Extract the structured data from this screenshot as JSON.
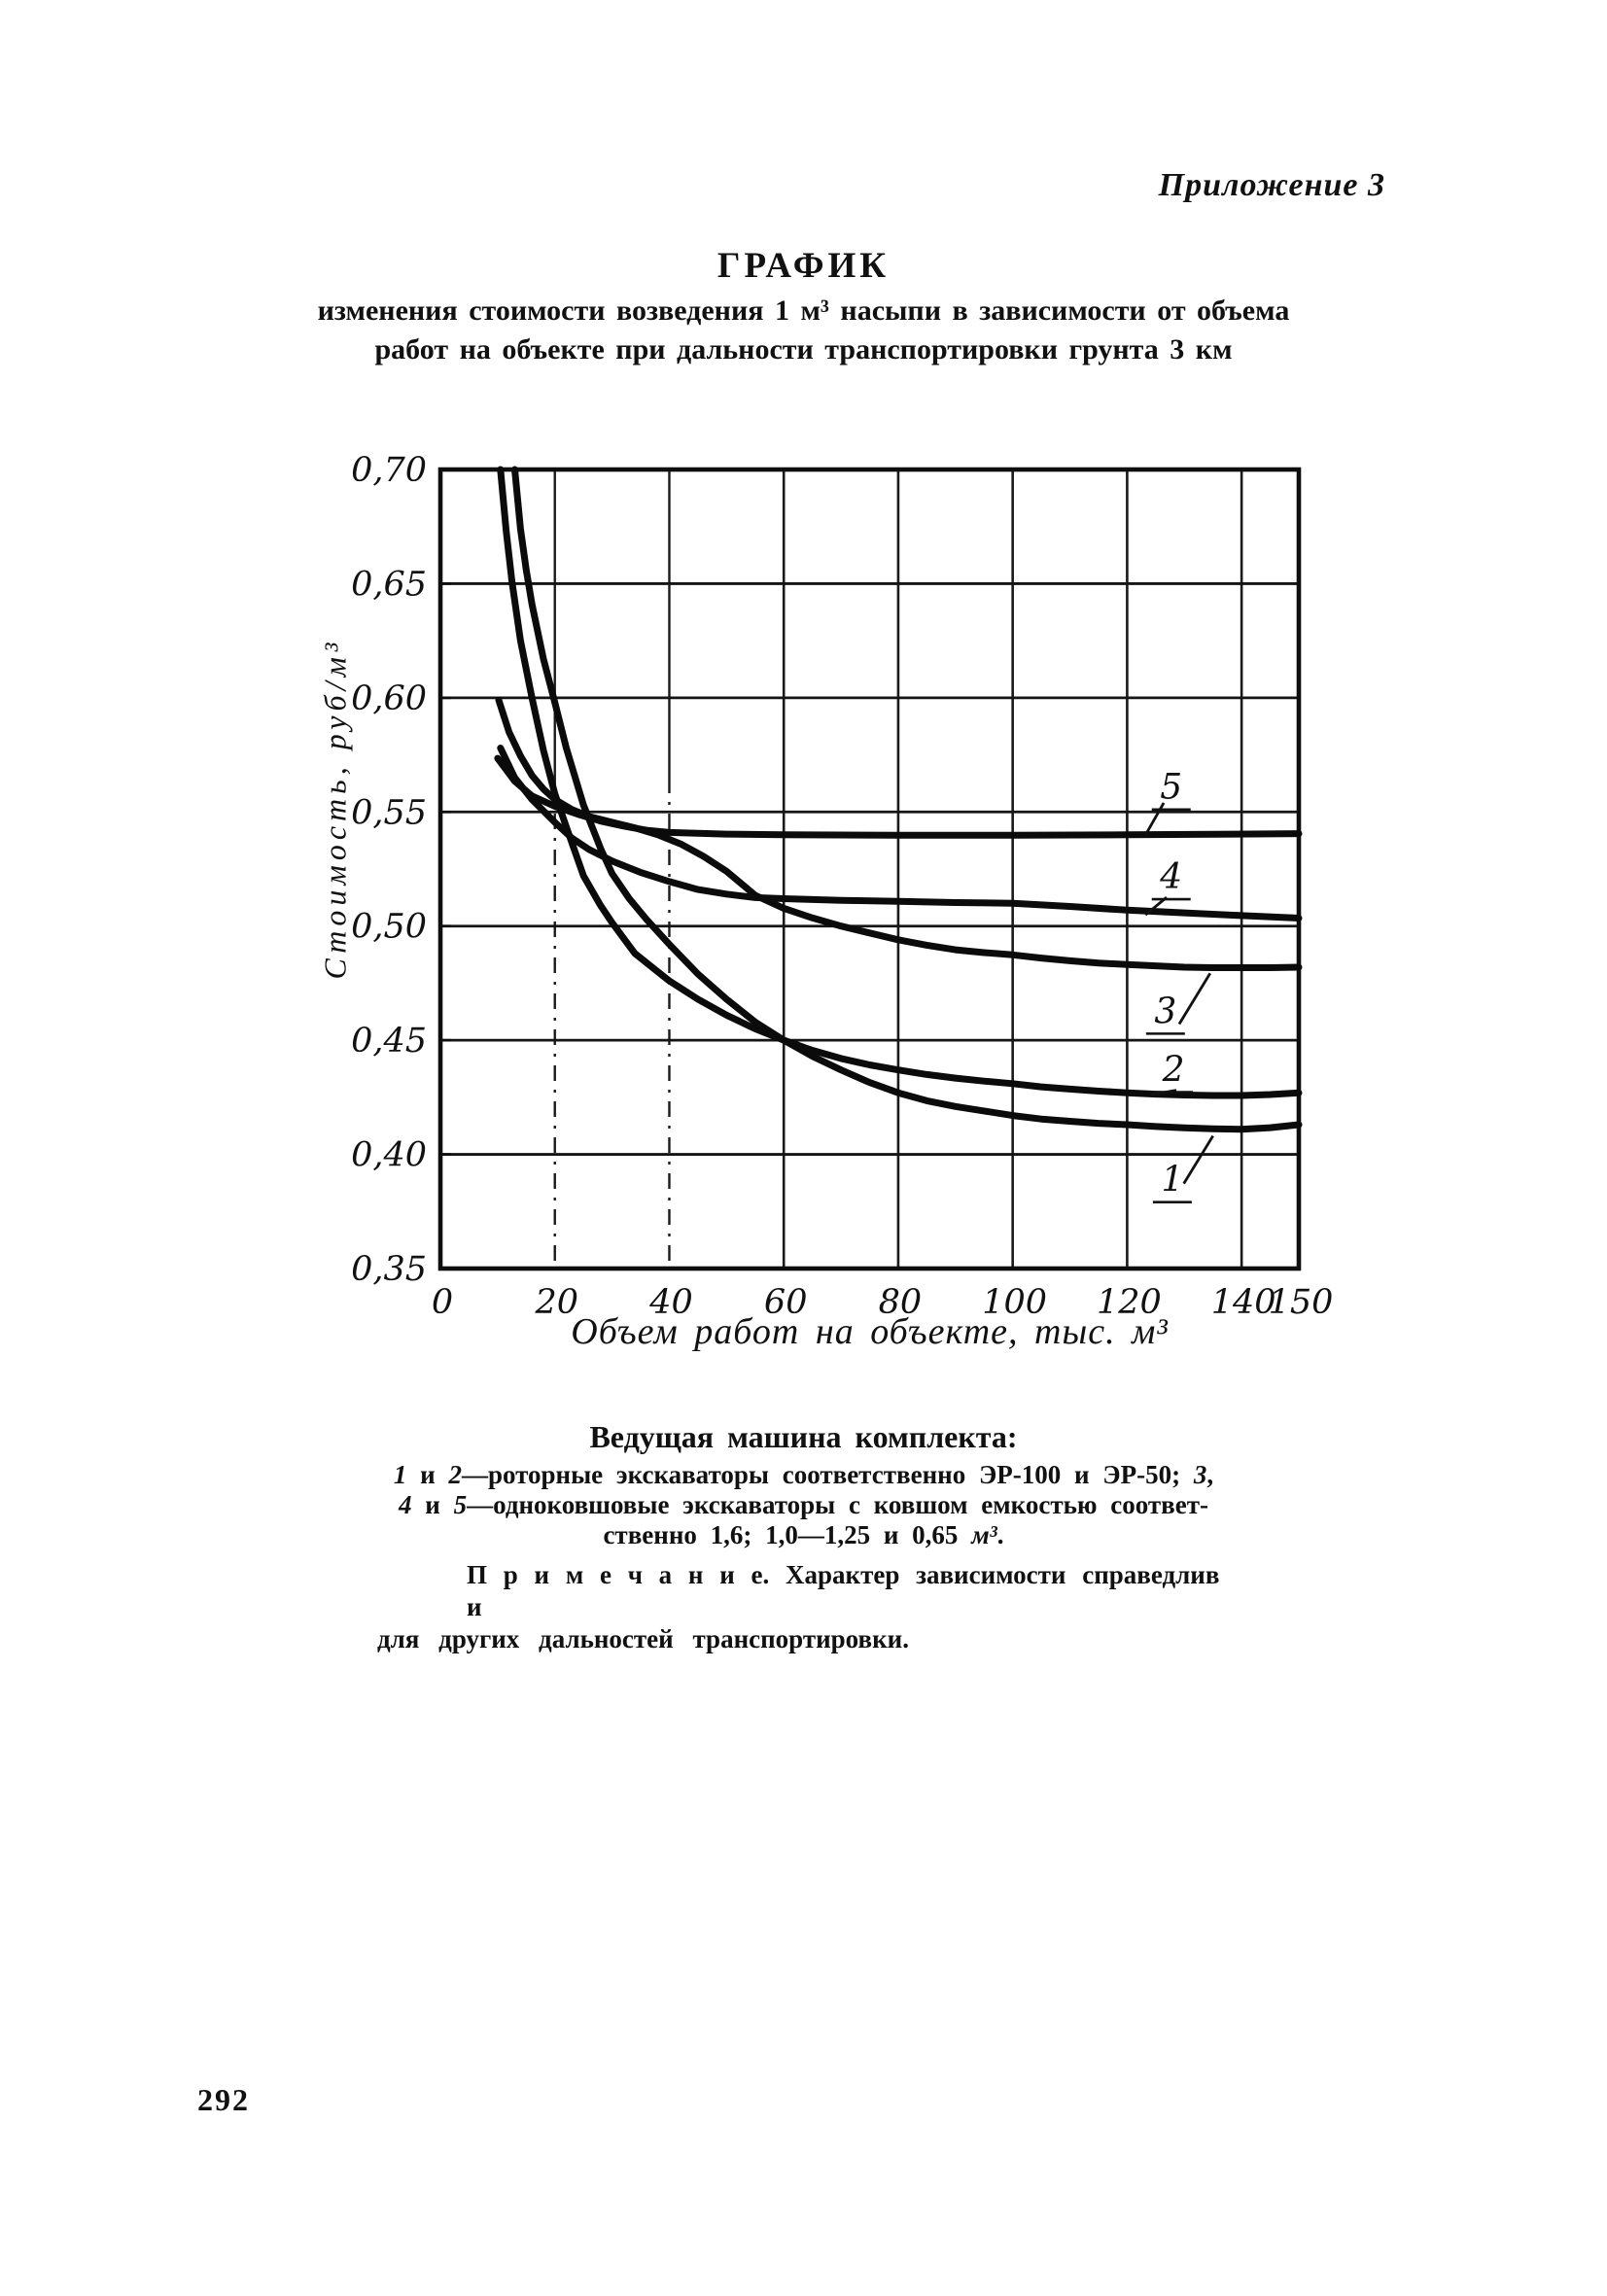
{
  "page": {
    "appendix_label": "Приложение 3",
    "heading": "ГРАФИК",
    "subtitle_line1": "изменения стоимости возведения 1 м³ насыпи в зависимости от объема",
    "subtitle_line2": "работ на объекте при дальности транспортировки грунта 3 км",
    "page_number": "292"
  },
  "chart_data": {
    "type": "line",
    "title": "График изменения стоимости возведения 1 м³ насыпи в зависимости от объема работ на объекте при дальности транспортировки грунта 3 км",
    "xlabel": "Объем работ на объекте, тыс. м³",
    "ylabel": "Стоимость, руб/м³",
    "xlim": [
      0,
      150
    ],
    "ylim": [
      0.35,
      0.7
    ],
    "x_ticks": [
      0,
      20,
      40,
      60,
      80,
      100,
      120,
      140,
      150
    ],
    "x_tick_labels": [
      "0",
      "20",
      "40",
      "60",
      "80",
      "100",
      "120",
      "140",
      "150"
    ],
    "y_ticks": [
      0.7,
      0.65,
      0.6,
      0.55,
      0.5,
      0.45,
      0.4,
      0.35
    ],
    "y_tick_labels": [
      "0,70",
      "0,65",
      "0,60",
      "0,55",
      "0,50",
      "0,45",
      "0,40",
      "0,35"
    ],
    "grid": true,
    "legend_position": "numbered labels with leader lines inside plot, right side",
    "series": [
      {
        "name": "1",
        "machine": "роторный экскаватор ЭР-100",
        "points": [
          [
            13,
            0.7
          ],
          [
            14,
            0.674
          ],
          [
            15,
            0.656
          ],
          [
            16,
            0.641
          ],
          [
            18,
            0.617
          ],
          [
            20,
            0.598
          ],
          [
            22,
            0.578
          ],
          [
            25,
            0.553
          ],
          [
            28,
            0.534
          ],
          [
            30,
            0.523
          ],
          [
            33,
            0.512
          ],
          [
            36,
            0.503
          ],
          [
            40,
            0.492
          ],
          [
            45,
            0.479
          ],
          [
            50,
            0.468
          ],
          [
            55,
            0.458
          ],
          [
            60,
            0.45
          ],
          [
            65,
            0.443
          ],
          [
            70,
            0.437
          ],
          [
            75,
            0.4315
          ],
          [
            80,
            0.427
          ],
          [
            85,
            0.4235
          ],
          [
            90,
            0.421
          ],
          [
            95,
            0.419
          ],
          [
            100,
            0.417
          ],
          [
            105,
            0.4155
          ],
          [
            110,
            0.4145
          ],
          [
            115,
            0.4136
          ],
          [
            120,
            0.413
          ],
          [
            125,
            0.4122
          ],
          [
            130,
            0.4116
          ],
          [
            135,
            0.4112
          ],
          [
            140,
            0.411
          ],
          [
            145,
            0.4117
          ],
          [
            150,
            0.413
          ]
        ],
        "label_at": [
          127.9,
          0.3893
        ],
        "leader": [
          [
            129.9,
            0.3872
          ],
          [
            135.0,
            0.4081
          ]
        ]
      },
      {
        "name": "2",
        "machine": "роторный экскаватор ЭР-50",
        "points": [
          [
            10.5,
            0.7
          ],
          [
            11.5,
            0.673
          ],
          [
            12.5,
            0.651
          ],
          [
            14,
            0.625
          ],
          [
            16,
            0.6
          ],
          [
            18,
            0.577
          ],
          [
            20,
            0.558
          ],
          [
            22,
            0.5435
          ],
          [
            25,
            0.522
          ],
          [
            28,
            0.509
          ],
          [
            30,
            0.5015
          ],
          [
            34,
            0.488
          ],
          [
            38,
            0.48
          ],
          [
            40,
            0.476
          ],
          [
            45,
            0.468
          ],
          [
            50,
            0.461
          ],
          [
            55,
            0.455
          ],
          [
            60,
            0.45
          ],
          [
            65,
            0.4456
          ],
          [
            70,
            0.442
          ],
          [
            75,
            0.4392
          ],
          [
            80,
            0.437
          ],
          [
            85,
            0.435
          ],
          [
            90,
            0.4334
          ],
          [
            95,
            0.4321
          ],
          [
            100,
            0.431
          ],
          [
            105,
            0.4296
          ],
          [
            110,
            0.4286
          ],
          [
            115,
            0.4277
          ],
          [
            120,
            0.427
          ],
          [
            125,
            0.4264
          ],
          [
            130,
            0.426
          ],
          [
            135,
            0.4258
          ],
          [
            140,
            0.4258
          ],
          [
            145,
            0.4262
          ],
          [
            150,
            0.427
          ]
        ],
        "label_at": [
          128.1,
          0.4375
        ],
        "leader": [
          [
            128.6,
            0.4281
          ],
          [
            124.3,
            0.4262
          ]
        ]
      },
      {
        "name": "3",
        "machine": "одноковшовый экскаватор с ковшом 1,6 м³",
        "points": [
          [
            10.2,
            0.599
          ],
          [
            12,
            0.585
          ],
          [
            14,
            0.5745
          ],
          [
            16,
            0.566
          ],
          [
            18,
            0.56
          ],
          [
            20,
            0.5555
          ],
          [
            23,
            0.551
          ],
          [
            26,
            0.548
          ],
          [
            30,
            0.5455
          ],
          [
            34,
            0.543
          ],
          [
            38,
            0.54
          ],
          [
            42,
            0.536
          ],
          [
            46,
            0.5305
          ],
          [
            50,
            0.524
          ],
          [
            55,
            0.5135
          ],
          [
            60,
            0.5078
          ],
          [
            65,
            0.5036
          ],
          [
            70,
            0.5
          ],
          [
            75,
            0.497
          ],
          [
            80,
            0.494
          ],
          [
            85,
            0.4916
          ],
          [
            90,
            0.4896
          ],
          [
            95,
            0.4884
          ],
          [
            100,
            0.4874
          ],
          [
            105,
            0.486
          ],
          [
            110,
            0.4848
          ],
          [
            115,
            0.4838
          ],
          [
            120,
            0.4832
          ],
          [
            125,
            0.4826
          ],
          [
            130,
            0.482
          ],
          [
            135,
            0.4818
          ],
          [
            140,
            0.4818
          ],
          [
            145,
            0.4818
          ],
          [
            150,
            0.482
          ]
        ],
        "label_at": [
          126.7,
          0.4631
        ],
        "leader": [
          [
            129.1,
            0.4571
          ],
          [
            134.5,
            0.4793
          ]
        ]
      },
      {
        "name": "4",
        "machine": "одноковшовый экскаватор с ковшом 1,0–1,25 м³",
        "points": [
          [
            10.5,
            0.578
          ],
          [
            13,
            0.565
          ],
          [
            16,
            0.5555
          ],
          [
            20,
            0.5455
          ],
          [
            23,
            0.5385
          ],
          [
            26,
            0.5335
          ],
          [
            30,
            0.5285
          ],
          [
            35,
            0.5235
          ],
          [
            40,
            0.5195
          ],
          [
            45,
            0.516
          ],
          [
            50,
            0.514
          ],
          [
            55,
            0.5125
          ],
          [
            60,
            0.512
          ],
          [
            70,
            0.5113
          ],
          [
            80,
            0.5108
          ],
          [
            90,
            0.5103
          ],
          [
            100,
            0.51
          ],
          [
            110,
            0.5086
          ],
          [
            120,
            0.507
          ],
          [
            130,
            0.5058
          ],
          [
            140,
            0.5046
          ],
          [
            150,
            0.5035
          ]
        ],
        "label_at": [
          127.7,
          0.522
        ],
        "leader": [
          [
            126.9,
            0.5126
          ],
          [
            123.2,
            0.5049
          ]
        ]
      },
      {
        "name": "5",
        "machine": "одноковшовый экскаватор с ковшом 0,65 м³",
        "points": [
          [
            10,
            0.5735
          ],
          [
            13,
            0.5635
          ],
          [
            16,
            0.557
          ],
          [
            20,
            0.5525
          ],
          [
            24,
            0.549
          ],
          [
            28,
            0.546
          ],
          [
            32,
            0.5438
          ],
          [
            36,
            0.542
          ],
          [
            40,
            0.541
          ],
          [
            50,
            0.5403
          ],
          [
            60,
            0.54
          ],
          [
            80,
            0.5398
          ],
          [
            100,
            0.5398
          ],
          [
            120,
            0.54
          ],
          [
            135,
            0.5402
          ],
          [
            150,
            0.5405
          ]
        ],
        "label_at": [
          127.7,
          0.5613
        ],
        "leader": [
          [
            126.4,
            0.554
          ],
          [
            123.2,
            0.5399
          ]
        ]
      }
    ]
  },
  "caption": {
    "heading": "Ведущая машина комплекта:",
    "lines": [
      [
        {
          "t": "1",
          "s": "i"
        },
        {
          "t": " и ",
          "s": "n"
        },
        {
          "t": "2",
          "s": "i"
        },
        {
          "t": "—роторные экскаваторы соответственно ЭР-100 и ЭР-50; ",
          "s": "n"
        },
        {
          "t": "3",
          "s": "i"
        },
        {
          "t": ",",
          "s": "n"
        }
      ],
      [
        {
          "t": "4",
          "s": "i"
        },
        {
          "t": " и ",
          "s": "n"
        },
        {
          "t": "5",
          "s": "i"
        },
        {
          "t": "—одноковшовые экскаваторы с ковшом емкостью соответ-",
          "s": "n"
        }
      ],
      [
        {
          "t": "ственно 1,6; 1,0—1,25 и 0,65 ",
          "s": "n"
        },
        {
          "t": "м³",
          "s": "i"
        },
        {
          "t": ".",
          "s": "n"
        }
      ]
    ]
  },
  "note": {
    "line1": "П р и м е ч а н и е. Характер зависимости справедлив и",
    "line2": "для других дальностей транспортировки."
  }
}
